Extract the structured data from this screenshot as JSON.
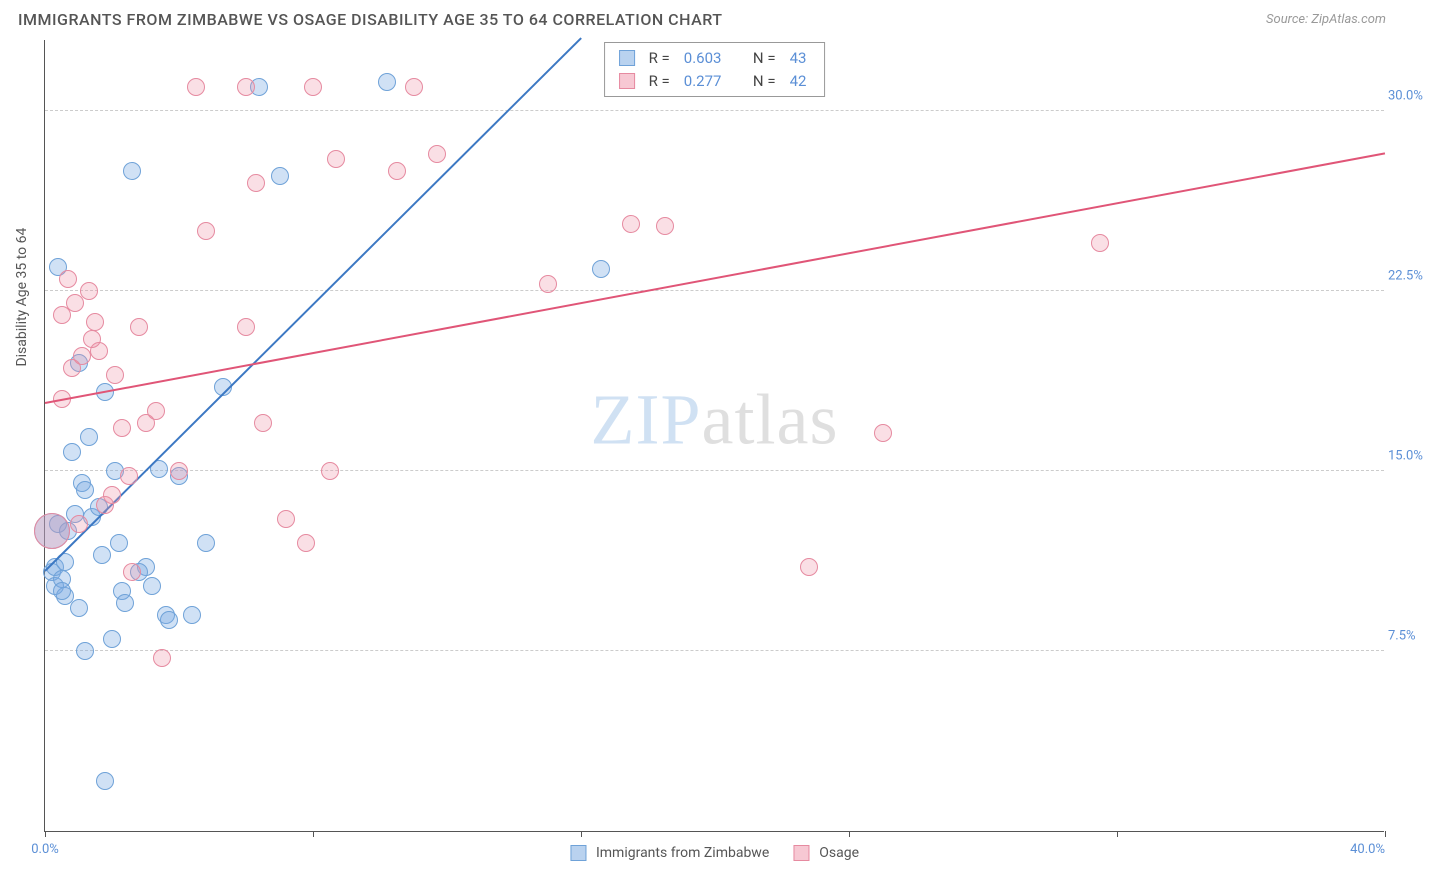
{
  "title": "IMMIGRANTS FROM ZIMBABWE VS OSAGE DISABILITY AGE 35 TO 64 CORRELATION CHART",
  "source": "Source: ZipAtlas.com",
  "ylabel": "Disability Age 35 to 64",
  "watermark": {
    "part1": "ZIP",
    "part2": "atlas"
  },
  "chart": {
    "type": "scatter",
    "xlim": [
      0,
      40
    ],
    "ylim": [
      0,
      33
    ],
    "xtick_positions": [
      0,
      8,
      16,
      24,
      32,
      40
    ],
    "xtick_labels": [
      "0.0%",
      "",
      "",
      "",
      "",
      "40.0%"
    ],
    "ytick_positions": [
      7.5,
      15.0,
      22.5,
      30.0
    ],
    "ytick_labels": [
      "7.5%",
      "15.0%",
      "22.5%",
      "30.0%"
    ],
    "background_color": "#ffffff",
    "grid_color": "#cccccc",
    "axis_color": "#555555",
    "tick_label_color": "#5b8fd6",
    "marker_radius": 9,
    "marker_stroke_width": 1.5,
    "large_marker_radius": 18,
    "series": [
      {
        "name": "Immigrants from Zimbabwe",
        "fill": "rgba(120,170,225,0.35)",
        "stroke": "#6fa2d8",
        "swatch_fill": "#b9d2ef",
        "swatch_border": "#6fa2d8",
        "trend_color": "#3c78c3",
        "trend_from": [
          0,
          10.8
        ],
        "trend_to": [
          16,
          33
        ],
        "R": "0.603",
        "N": "43",
        "points": [
          [
            0.2,
            10.8
          ],
          [
            0.3,
            11.0
          ],
          [
            0.3,
            10.2
          ],
          [
            0.5,
            10.5
          ],
          [
            0.6,
            11.2
          ],
          [
            0.4,
            12.8
          ],
          [
            0.4,
            23.5
          ],
          [
            1.0,
            19.5
          ],
          [
            1.1,
            14.5
          ],
          [
            1.2,
            14.2
          ],
          [
            1.3,
            16.4
          ],
          [
            1.4,
            13.1
          ],
          [
            1.6,
            13.5
          ],
          [
            1.7,
            11.5
          ],
          [
            1.8,
            18.3
          ],
          [
            2.0,
            8.0
          ],
          [
            2.1,
            15.0
          ],
          [
            2.2,
            12.0
          ],
          [
            2.3,
            10.0
          ],
          [
            2.4,
            9.5
          ],
          [
            2.6,
            27.5
          ],
          [
            3.0,
            11.0
          ],
          [
            3.2,
            10.2
          ],
          [
            3.4,
            15.1
          ],
          [
            3.6,
            9.0
          ],
          [
            3.7,
            8.8
          ],
          [
            4.0,
            14.8
          ],
          [
            4.4,
            9.0
          ],
          [
            4.8,
            12.0
          ],
          [
            5.3,
            18.5
          ],
          [
            6.4,
            31.0
          ],
          [
            7.0,
            27.3
          ],
          [
            10.2,
            31.2
          ],
          [
            16.6,
            23.4
          ],
          [
            1.8,
            2.1
          ],
          [
            1.2,
            7.5
          ],
          [
            0.8,
            15.8
          ],
          [
            0.9,
            13.2
          ],
          [
            1.0,
            9.3
          ],
          [
            0.6,
            9.8
          ],
          [
            0.5,
            10.0
          ],
          [
            0.7,
            12.5
          ],
          [
            2.8,
            10.8
          ]
        ],
        "large_points": [
          [
            0.2,
            12.5
          ]
        ]
      },
      {
        "name": "Osage",
        "fill": "rgba(240,150,170,0.3)",
        "stroke": "#e68aa0",
        "swatch_fill": "#f7c8d3",
        "swatch_border": "#e68aa0",
        "trend_color": "#e05577",
        "trend_from": [
          0,
          17.8
        ],
        "trend_to": [
          40,
          28.2
        ],
        "R": "0.277",
        "N": "42",
        "points": [
          [
            0.5,
            18.0
          ],
          [
            0.7,
            23.0
          ],
          [
            0.8,
            19.3
          ],
          [
            1.1,
            19.8
          ],
          [
            1.3,
            22.5
          ],
          [
            1.5,
            21.2
          ],
          [
            1.6,
            20.0
          ],
          [
            1.8,
            13.6
          ],
          [
            2.0,
            14.0
          ],
          [
            2.3,
            16.8
          ],
          [
            2.5,
            14.8
          ],
          [
            2.8,
            21.0
          ],
          [
            3.0,
            17.0
          ],
          [
            3.3,
            17.5
          ],
          [
            3.5,
            7.2
          ],
          [
            4.0,
            15.0
          ],
          [
            4.5,
            31.0
          ],
          [
            4.8,
            25.0
          ],
          [
            6.0,
            21.0
          ],
          [
            6.3,
            27.0
          ],
          [
            6.5,
            17.0
          ],
          [
            7.2,
            13.0
          ],
          [
            7.8,
            12.0
          ],
          [
            8.0,
            31.0
          ],
          [
            8.5,
            15.0
          ],
          [
            8.7,
            28.0
          ],
          [
            10.5,
            27.5
          ],
          [
            11.0,
            31.0
          ],
          [
            15.0,
            22.8
          ],
          [
            17.5,
            25.3
          ],
          [
            18.5,
            25.2
          ],
          [
            22.8,
            11.0
          ],
          [
            25.0,
            16.6
          ],
          [
            31.5,
            24.5
          ],
          [
            1.0,
            12.8
          ],
          [
            1.4,
            20.5
          ],
          [
            0.5,
            21.5
          ],
          [
            0.9,
            22.0
          ],
          [
            2.1,
            19.0
          ],
          [
            2.6,
            10.8
          ],
          [
            6.0,
            31.0
          ],
          [
            11.7,
            28.2
          ]
        ],
        "large_points": [
          [
            0.2,
            12.5
          ]
        ]
      }
    ],
    "legend_stats_label_R": "R =",
    "legend_stats_label_N": "N ="
  }
}
